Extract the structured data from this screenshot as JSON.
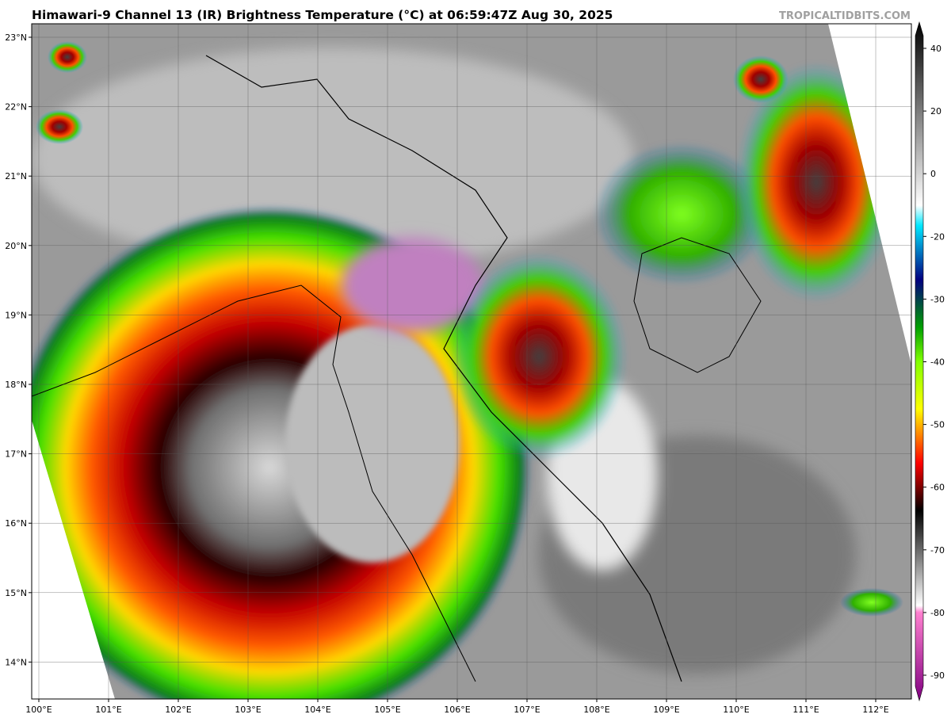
{
  "title": "Himawari-9 Channel 13 (IR) Brightness Temperature (°C) at 06:59:47Z Aug 30, 2025",
  "credit": "TROPICALTIDBITS.COM",
  "map": {
    "lat_labels": [
      "23°N",
      "22°N",
      "21°N",
      "20°N",
      "19°N",
      "18°N",
      "17°N",
      "16°N",
      "15°N",
      "14°N"
    ],
    "lon_labels": [
      "100°E",
      "101°E",
      "102°E",
      "103°E",
      "104°E",
      "105°E",
      "106°E",
      "107°E",
      "108°E",
      "109°E",
      "110°E",
      "111°E",
      "112°E"
    ]
  },
  "colorbar": {
    "ticks": [
      40,
      20,
      0,
      -20,
      -30,
      -40,
      -50,
      -60,
      -70,
      -80,
      -90
    ]
  }
}
